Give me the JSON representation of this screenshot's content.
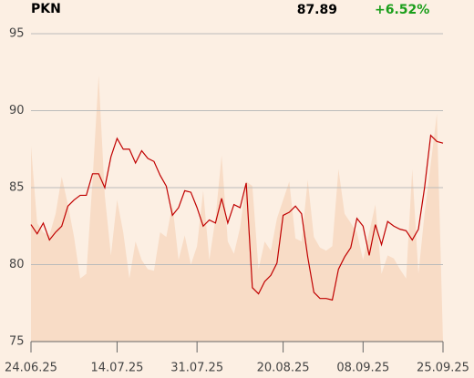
{
  "chart_data": {
    "type": "line",
    "title": "PKN",
    "last_price": 87.89,
    "change": "+6.52%",
    "categories": [
      "24.06.25",
      null,
      null,
      null,
      null,
      null,
      null,
      null,
      null,
      null,
      null,
      null,
      null,
      null,
      "14.07.25",
      null,
      null,
      null,
      null,
      null,
      null,
      null,
      null,
      null,
      null,
      null,
      null,
      "31.07.25",
      null,
      null,
      null,
      null,
      null,
      null,
      null,
      null,
      null,
      null,
      null,
      null,
      null,
      "20.08.25",
      null,
      null,
      null,
      null,
      null,
      null,
      null,
      null,
      null,
      null,
      null,
      null,
      "08.09.25",
      null,
      null,
      null,
      null,
      null,
      null,
      null,
      null,
      null,
      null,
      null,
      null,
      "25.09.25"
    ],
    "series": [
      {
        "color": "#c00000",
        "values": [
          82.6,
          82.0,
          82.7,
          81.6,
          82.1,
          82.5,
          83.8,
          84.2,
          84.5,
          84.5,
          85.9,
          85.9,
          85.0,
          87.0,
          88.2,
          87.5,
          87.5,
          86.6,
          87.4,
          86.9,
          86.7,
          85.8,
          85.1,
          83.2,
          83.7,
          84.8,
          84.7,
          83.7,
          82.5,
          82.9,
          82.7,
          84.3,
          82.7,
          83.9,
          83.7,
          85.3,
          78.5,
          78.1,
          78.9,
          79.3,
          80.1,
          83.2,
          83.4,
          83.8,
          83.3,
          80.5,
          78.2,
          77.8,
          77.8,
          77.7,
          79.7,
          80.5,
          81.1,
          83.0,
          82.5,
          80.6,
          82.6,
          81.3,
          82.8,
          82.5,
          82.3,
          82.2,
          81.6,
          82.3,
          85.0,
          88.4,
          88.0,
          87.89
        ]
      }
    ],
    "area": {
      "color": "#f8dcc6",
      "values": [
        87.7,
        82.7,
        82.1,
        81.9,
        83.3,
        85.7,
        83.9,
        81.8,
        79.1,
        79.4,
        85.4,
        92.3,
        84.5,
        80.6,
        84.2,
        82.1,
        79.1,
        81.5,
        80.3,
        79.7,
        79.6,
        82.1,
        81.8,
        83.9,
        80.3,
        81.9,
        80.0,
        81.2,
        84.8,
        80.3,
        83.0,
        87.1,
        81.5,
        80.7,
        82.4,
        85.4,
        85.1,
        79.7,
        81.5,
        80.9,
        83.0,
        84.2,
        85.4,
        81.7,
        81.5,
        85.5,
        81.8,
        81.1,
        80.9,
        81.2,
        86.2,
        83.3,
        82.7,
        82.1,
        80.3,
        82.1,
        83.9,
        79.4,
        80.6,
        80.4,
        79.7,
        79.1,
        86.2,
        79.4,
        83.3,
        86.5,
        89.8,
        75
      ]
    },
    "ylim": [
      75,
      95
    ],
    "yticks": [
      75,
      80,
      85,
      90,
      95
    ],
    "grid": true
  }
}
